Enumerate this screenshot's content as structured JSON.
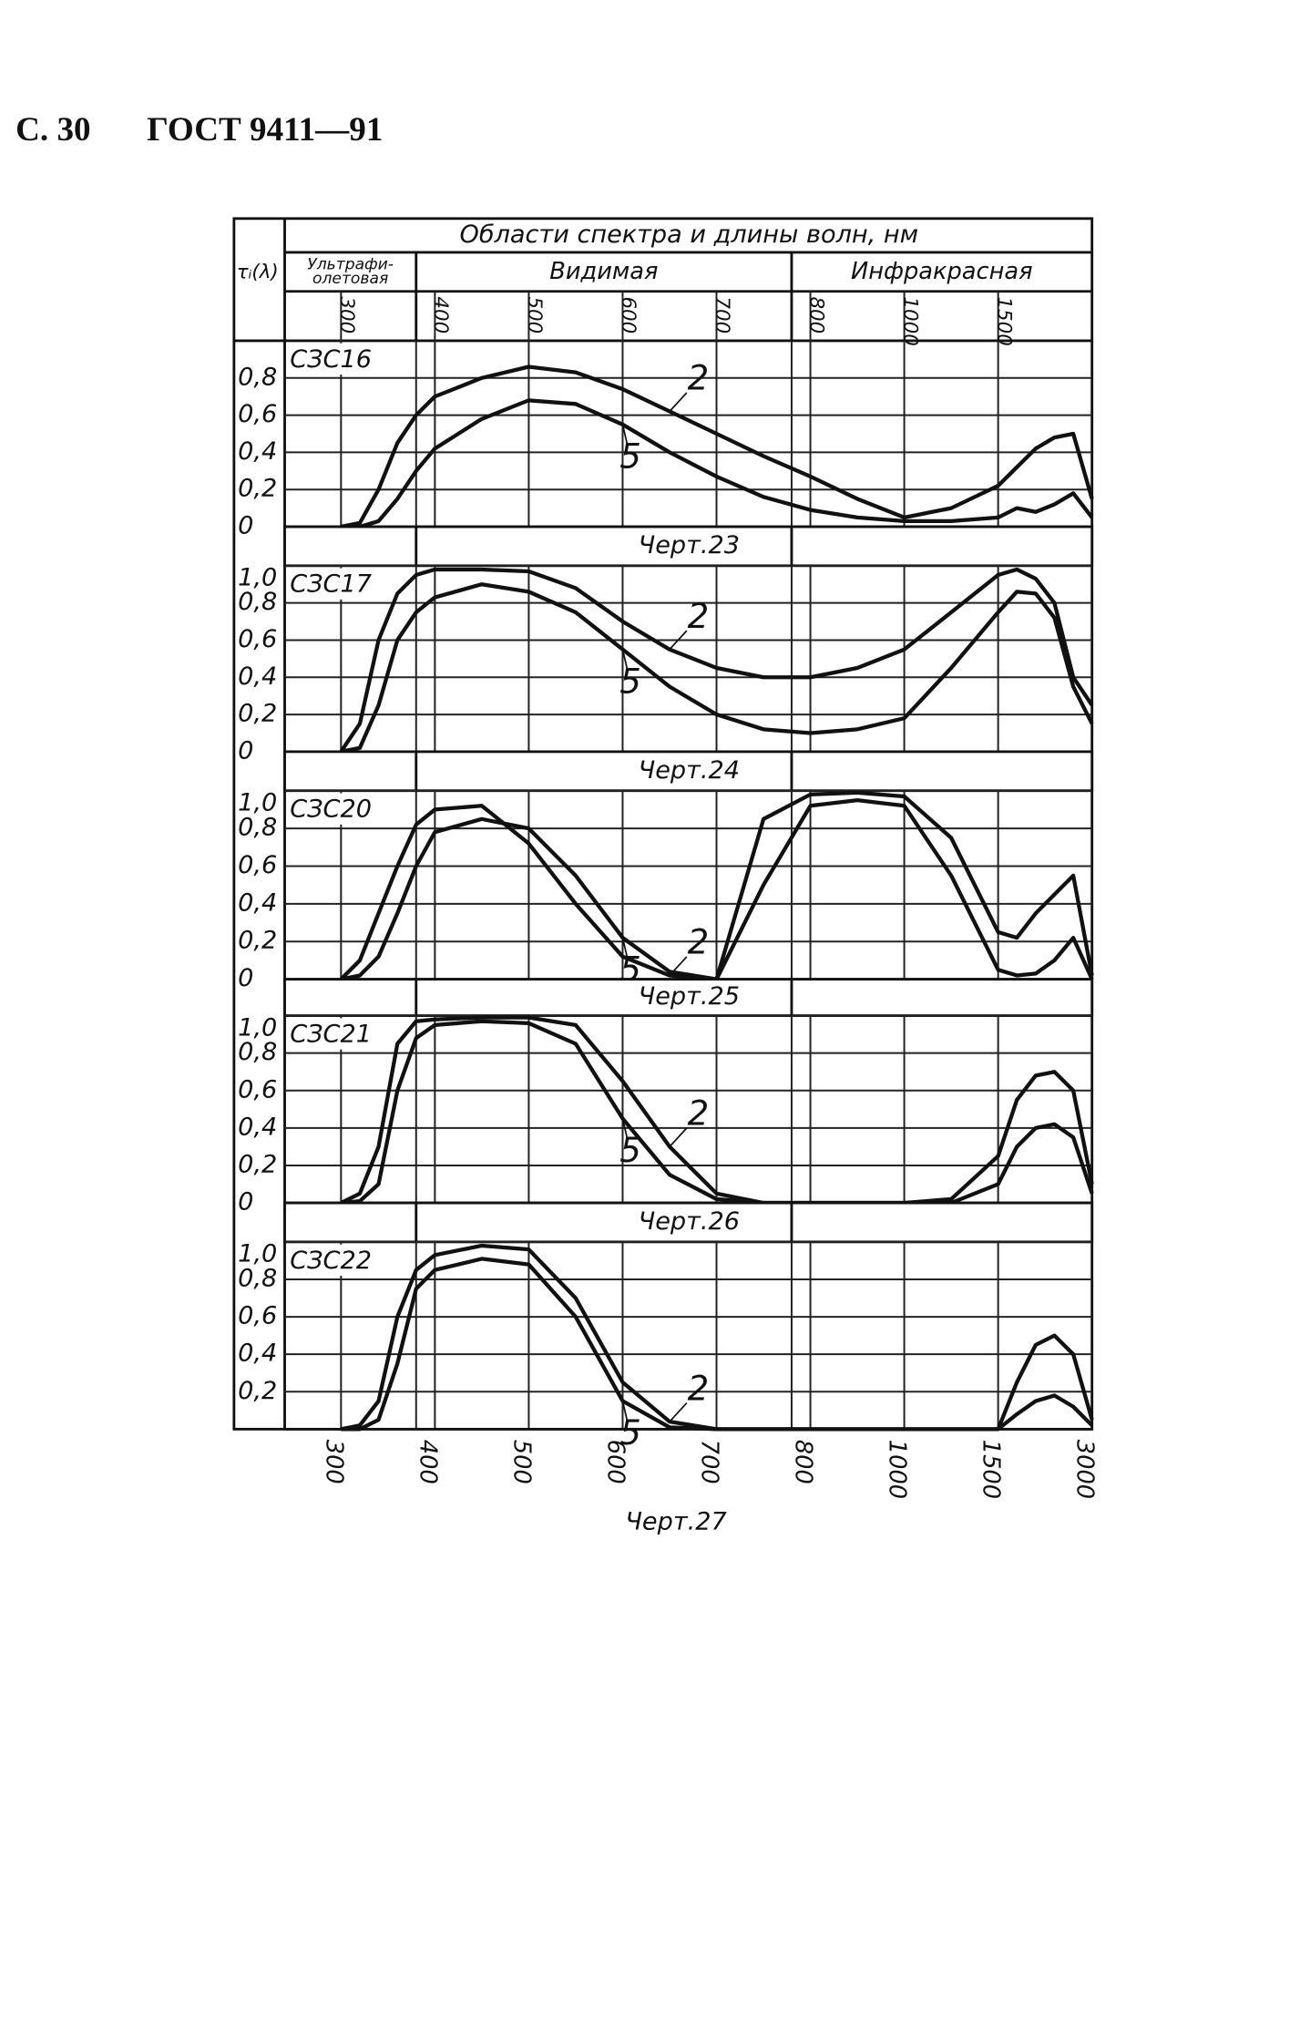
{
  "header": {
    "page": "С. 30",
    "standard": "ГОСТ 9411—91"
  },
  "spectrum_header": {
    "title": "Области спектра и длины волн, нм",
    "y_label": "τᵢ(λ)",
    "regions": [
      {
        "lines": [
          "Ультрафи-",
          "олетовая"
        ],
        "range": [
          240,
          380
        ]
      },
      {
        "lines": [
          "Видимая"
        ],
        "range": [
          380,
          780
        ]
      },
      {
        "lines": [
          "Инфракрасная"
        ],
        "range": [
          780,
          3000
        ]
      }
    ],
    "ticks": [
      300,
      400,
      500,
      600,
      700,
      800,
      1000,
      1500
    ]
  },
  "chart_data": [
    {
      "type": "line",
      "title": "СЗС16",
      "caption": "Черт.23",
      "xlim": [
        240,
        3000
      ],
      "ylim": [
        0,
        1.0
      ],
      "grid": true,
      "yticks": [
        0,
        {
          "value": 0.2,
          "label": "0,2"
        },
        {
          "value": 0.4,
          "label": "0,4"
        },
        {
          "value": 0.6,
          "label": "0,6"
        },
        {
          "value": 0.8,
          "label": "0,8"
        }
      ],
      "x": [
        300,
        320,
        340,
        360,
        380,
        400,
        450,
        500,
        550,
        600,
        650,
        700,
        750,
        800,
        900,
        1000,
        1250,
        1500,
        1800,
        2100,
        2400,
        2700,
        3000
      ],
      "series": [
        {
          "name": "2",
          "color": "#111111",
          "values": [
            0,
            0.02,
            0.2,
            0.45,
            0.6,
            0.7,
            0.8,
            0.86,
            0.83,
            0.74,
            0.62,
            0.5,
            0.38,
            0.27,
            0.15,
            0.05,
            0.1,
            0.22,
            0.32,
            0.42,
            0.48,
            0.5,
            0.15
          ]
        },
        {
          "name": "5",
          "color": "#111111",
          "values": [
            0,
            0,
            0.03,
            0.15,
            0.3,
            0.42,
            0.58,
            0.68,
            0.66,
            0.55,
            0.4,
            0.27,
            0.16,
            0.09,
            0.05,
            0.03,
            0.03,
            0.05,
            0.1,
            0.08,
            0.12,
            0.18,
            0.05
          ]
        }
      ]
    },
    {
      "type": "line",
      "title": "СЗС17",
      "caption": "Черт.24",
      "xlim": [
        240,
        3000
      ],
      "ylim": [
        0,
        1.0
      ],
      "grid": true,
      "yticks": [
        0,
        {
          "value": 0.2,
          "label": "0,2"
        },
        {
          "value": 0.4,
          "label": "0,4"
        },
        {
          "value": 0.6,
          "label": "0,6"
        },
        {
          "value": 0.8,
          "label": "0,8"
        },
        {
          "value": 1.0,
          "label": "1,0"
        }
      ],
      "x": [
        300,
        320,
        340,
        360,
        380,
        400,
        450,
        500,
        550,
        600,
        650,
        700,
        750,
        800,
        900,
        1000,
        1250,
        1500,
        1800,
        2100,
        2400,
        2700,
        3000
      ],
      "series": [
        {
          "name": "2",
          "color": "#111111",
          "values": [
            0,
            0.15,
            0.6,
            0.85,
            0.95,
            0.98,
            0.98,
            0.97,
            0.88,
            0.7,
            0.55,
            0.45,
            0.4,
            0.4,
            0.45,
            0.55,
            0.75,
            0.95,
            0.98,
            0.93,
            0.8,
            0.4,
            0.25
          ]
        },
        {
          "name": "5",
          "color": "#111111",
          "values": [
            0,
            0.02,
            0.25,
            0.6,
            0.75,
            0.83,
            0.9,
            0.86,
            0.75,
            0.55,
            0.35,
            0.2,
            0.12,
            0.1,
            0.12,
            0.18,
            0.45,
            0.75,
            0.86,
            0.85,
            0.72,
            0.35,
            0.15
          ]
        }
      ]
    },
    {
      "type": "line",
      "title": "СЗС20",
      "caption": "Черт.25",
      "xlim": [
        240,
        3000
      ],
      "ylim": [
        0,
        1.0
      ],
      "grid": true,
      "yticks": [
        0,
        {
          "value": 0.2,
          "label": "0,2"
        },
        {
          "value": 0.4,
          "label": "0,4"
        },
        {
          "value": 0.6,
          "label": "0,6"
        },
        {
          "value": 0.8,
          "label": "0,8"
        },
        {
          "value": 1.0,
          "label": "1,0"
        }
      ],
      "x": [
        300,
        320,
        340,
        360,
        380,
        400,
        450,
        500,
        550,
        600,
        650,
        700,
        750,
        800,
        900,
        1000,
        1250,
        1500,
        1800,
        2100,
        2400,
        2700,
        3000
      ],
      "series": [
        {
          "name": "2",
          "color": "#111111",
          "values": [
            0,
            0.1,
            0.35,
            0.6,
            0.82,
            0.9,
            0.92,
            0.72,
            0.4,
            0.12,
            0.02,
            0,
            0.85,
            0.98,
            0.99,
            0.97,
            0.75,
            0.25,
            0.22,
            0.35,
            0.45,
            0.55,
            0.02
          ]
        },
        {
          "name": "5",
          "color": "#111111",
          "values": [
            0,
            0.02,
            0.12,
            0.35,
            0.6,
            0.78,
            0.85,
            0.8,
            0.55,
            0.22,
            0.04,
            0,
            0.5,
            0.92,
            0.95,
            0.92,
            0.55,
            0.05,
            0.02,
            0.03,
            0.1,
            0.22,
            0
          ]
        }
      ]
    },
    {
      "type": "line",
      "title": "СЗС21",
      "caption": "Черт.26",
      "xlim": [
        240,
        3000
      ],
      "ylim": [
        0,
        1.0
      ],
      "grid": true,
      "yticks": [
        0,
        {
          "value": 0.2,
          "label": "0,2"
        },
        {
          "value": 0.4,
          "label": "0,4"
        },
        {
          "value": 0.6,
          "label": "0,6"
        },
        {
          "value": 0.8,
          "label": "0,8"
        },
        {
          "value": 1.0,
          "label": "1,0"
        }
      ],
      "x": [
        300,
        320,
        340,
        360,
        380,
        400,
        450,
        500,
        550,
        600,
        650,
        700,
        750,
        800,
        900,
        1000,
        1250,
        1500,
        1800,
        2100,
        2400,
        2700,
        3000
      ],
      "series": [
        {
          "name": "2",
          "color": "#111111",
          "values": [
            0,
            0.05,
            0.3,
            0.85,
            0.97,
            0.98,
            0.99,
            0.99,
            0.95,
            0.65,
            0.3,
            0.05,
            0,
            0,
            0,
            0,
            0.02,
            0.25,
            0.55,
            0.68,
            0.7,
            0.6,
            0.1
          ]
        },
        {
          "name": "5",
          "color": "#111111",
          "values": [
            0,
            0.01,
            0.1,
            0.6,
            0.88,
            0.95,
            0.97,
            0.96,
            0.85,
            0.45,
            0.15,
            0.02,
            0,
            0,
            0,
            0,
            0,
            0.1,
            0.3,
            0.4,
            0.42,
            0.35,
            0.05
          ]
        }
      ]
    },
    {
      "type": "line",
      "title": "СЗС22",
      "caption": "Черт.27",
      "xlim": [
        240,
        3000
      ],
      "ylim": [
        0,
        1.0
      ],
      "grid": true,
      "yticks": [
        {
          "value": 0.2,
          "label": "0,2"
        },
        {
          "value": 0.4,
          "label": "0,4"
        },
        {
          "value": 0.6,
          "label": "0,6"
        },
        {
          "value": 0.8,
          "label": "0,8"
        },
        {
          "value": 1.0,
          "label": "1,0"
        }
      ],
      "xticks": [
        300,
        400,
        500,
        600,
        700,
        800,
        1000,
        1500,
        3000
      ],
      "x": [
        300,
        320,
        340,
        360,
        380,
        400,
        450,
        500,
        550,
        600,
        650,
        700,
        750,
        800,
        900,
        1000,
        1250,
        1500,
        1800,
        2100,
        2400,
        2700,
        3000
      ],
      "series": [
        {
          "name": "2",
          "color": "#111111",
          "values": [
            0,
            0.02,
            0.15,
            0.6,
            0.85,
            0.93,
            0.98,
            0.96,
            0.7,
            0.25,
            0.04,
            0,
            0,
            0,
            0,
            0,
            0,
            0,
            0.25,
            0.45,
            0.5,
            0.4,
            0.05
          ]
        },
        {
          "name": "5",
          "color": "#111111",
          "values": [
            0,
            0,
            0.05,
            0.35,
            0.75,
            0.85,
            0.91,
            0.88,
            0.6,
            0.15,
            0.01,
            0,
            0,
            0,
            0,
            0,
            0,
            0,
            0.08,
            0.15,
            0.18,
            0.12,
            0.02
          ]
        }
      ]
    }
  ]
}
